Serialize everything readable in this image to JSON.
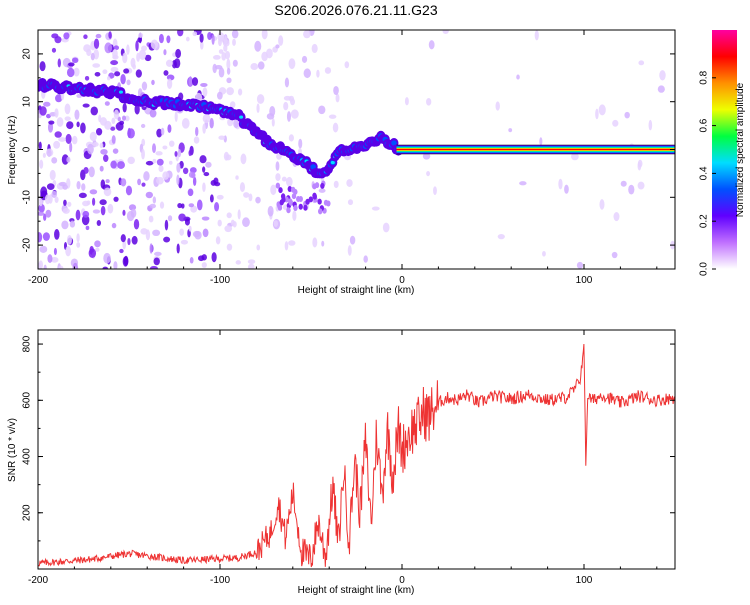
{
  "figure_title": "S206.2026.076.21.11.G23",
  "chart_data": [
    {
      "type": "heatmap",
      "title": "S206.2026.076.21.11.G23",
      "xlabel": "Height of straight line (km)",
      "ylabel": "Frequency (Hz)",
      "xlim": [
        -200,
        150
      ],
      "ylim": [
        -25,
        25
      ],
      "x_ticks": [
        -200,
        -100,
        0,
        100
      ],
      "y_ticks": [
        -20,
        -10,
        0,
        10,
        20
      ],
      "ridge_track": {
        "x": [
          -200,
          -185,
          -170,
          -160,
          -150,
          -140,
          -125,
          -110,
          -100,
          -90,
          -85,
          -78,
          -72,
          -65,
          -58,
          -52,
          -48,
          -44,
          -40,
          -36,
          -32,
          -25,
          -20,
          -15,
          -12,
          -8,
          -3,
          0,
          50,
          100,
          150
        ],
        "frequency": [
          13.5,
          13,
          12.5,
          12,
          11,
          10,
          9.5,
          9,
          8,
          7,
          5,
          3,
          1,
          0,
          -2,
          -3,
          -4.5,
          -5.5,
          -3.5,
          -1,
          0,
          0.5,
          0.8,
          1.5,
          2.5,
          1.5,
          0.5,
          0,
          0,
          0,
          0
        ]
      },
      "colorbar": {
        "label": "Normalized spectral amplitude",
        "ticks": [
          "0.0",
          "0.2",
          "0.4",
          "0.6",
          "0.8"
        ],
        "range": [
          0,
          1
        ],
        "colors": [
          "#ffffff",
          "#c070ff",
          "#6000ff",
          "#0050ff",
          "#00ddff",
          "#00ff40",
          "#eeff00",
          "#ff9000",
          "#ff0000",
          "#ff00a0"
        ]
      }
    },
    {
      "type": "line",
      "xlabel": "Height of straight line (km)",
      "ylabel": "SNR (10 * v/v)",
      "xlim": [
        -200,
        150
      ],
      "ylim": [
        0,
        850
      ],
      "x_ticks": [
        -200,
        -100,
        0,
        100
      ],
      "y_ticks": [
        200,
        400,
        600,
        800
      ],
      "line_color": "#ee3333",
      "series": [
        {
          "name": "SNR",
          "x": [
            -200,
            -170,
            -150,
            -120,
            -90,
            -80,
            -72,
            -68,
            -64,
            -60,
            -55,
            -50,
            -46,
            -42,
            -38,
            -35,
            -32,
            -29,
            -26,
            -23,
            -20,
            -17,
            -14,
            -11,
            -8,
            -5,
            -2,
            0,
            3,
            6,
            9,
            12,
            15,
            18,
            22,
            26,
            30,
            36,
            42,
            50,
            60,
            70,
            80,
            90,
            95,
            98,
            100,
            101,
            102,
            105,
            110,
            120,
            130,
            140,
            150
          ],
          "values": [
            20,
            35,
            55,
            30,
            40,
            60,
            130,
            240,
            110,
            270,
            60,
            30,
            170,
            40,
            300,
            80,
            360,
            100,
            390,
            200,
            460,
            160,
            480,
            260,
            500,
            330,
            500,
            420,
            470,
            500,
            520,
            560,
            540,
            580,
            600,
            610,
            600,
            620,
            590,
            615,
            605,
            620,
            600,
            610,
            640,
            680,
            800,
            370,
            610,
            600,
            620,
            590,
            615,
            600,
            610
          ]
        }
      ]
    }
  ]
}
